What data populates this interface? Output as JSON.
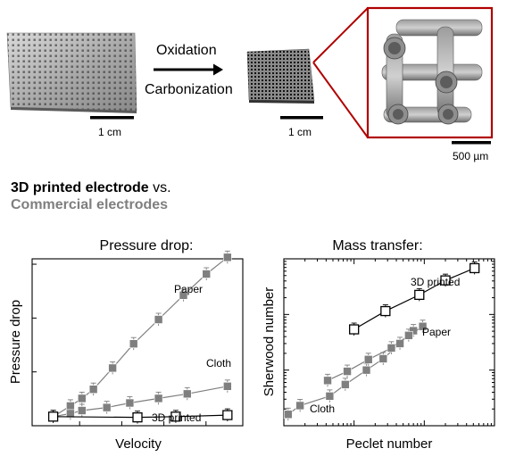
{
  "process": {
    "step1": "Oxidation",
    "step2": "Carbonization",
    "scale_left": "1 cm",
    "scale_mid": "1 cm",
    "scale_right": "500 µm"
  },
  "comparison": {
    "bold": "3D printed electrode",
    "vs": " vs.",
    "gray": "Commercial electrodes"
  },
  "colors": {
    "printed": "#000000",
    "commercial": "#7f7f7f",
    "frame": "#b00000"
  },
  "chart_data": [
    {
      "type": "line",
      "title": "Pressure drop:",
      "xlabel": "Velocity",
      "ylabel": "Pressure drop",
      "xlim": [
        0,
        11
      ],
      "ylim": [
        0,
        11
      ],
      "series": [
        {
          "name": "Paper",
          "style": "filled",
          "x": [
            1.1,
            2.0,
            2.6,
            3.2,
            4.2,
            5.3,
            6.6,
            7.9,
            9.1,
            10.2
          ],
          "y": [
            0.6,
            1.3,
            1.8,
            2.4,
            3.8,
            5.4,
            7.0,
            8.6,
            10.0,
            11.1
          ]
        },
        {
          "name": "Cloth",
          "style": "filled",
          "x": [
            1.1,
            2.0,
            2.6,
            3.9,
            5.1,
            6.6,
            8.1,
            10.2
          ],
          "y": [
            0.6,
            0.8,
            1.0,
            1.2,
            1.5,
            1.8,
            2.1,
            2.6
          ]
        },
        {
          "name": "3D printed",
          "style": "open",
          "x": [
            1.1,
            5.5,
            7.5,
            10.2
          ],
          "y": [
            0.6,
            0.55,
            0.6,
            0.7
          ]
        }
      ]
    },
    {
      "type": "line",
      "title": "Mass transfer:",
      "xlabel": "Peclet number",
      "ylabel": "Sherwood number",
      "xscale": "log",
      "yscale": "log",
      "xlim": [
        1,
        1000
      ],
      "ylim": [
        1,
        1000
      ],
      "series": [
        {
          "name": "Cloth",
          "style": "filled",
          "x": [
            1.15,
            1.7,
            4.5,
            7.5,
            15,
            26,
            45,
            70
          ],
          "y": [
            1.6,
            2.3,
            3.4,
            5.5,
            10,
            16,
            30,
            51
          ]
        },
        {
          "name": "Paper",
          "style": "filled",
          "x": [
            4.2,
            8,
            16,
            34,
            60,
            95
          ],
          "y": [
            6.5,
            9.5,
            15.5,
            25,
            42,
            61
          ]
        },
        {
          "name": "3D printed",
          "style": "open",
          "x": [
            10,
            28,
            85,
            200,
            520
          ],
          "y": [
            54,
            115,
            225,
            410,
            680
          ]
        }
      ]
    }
  ]
}
